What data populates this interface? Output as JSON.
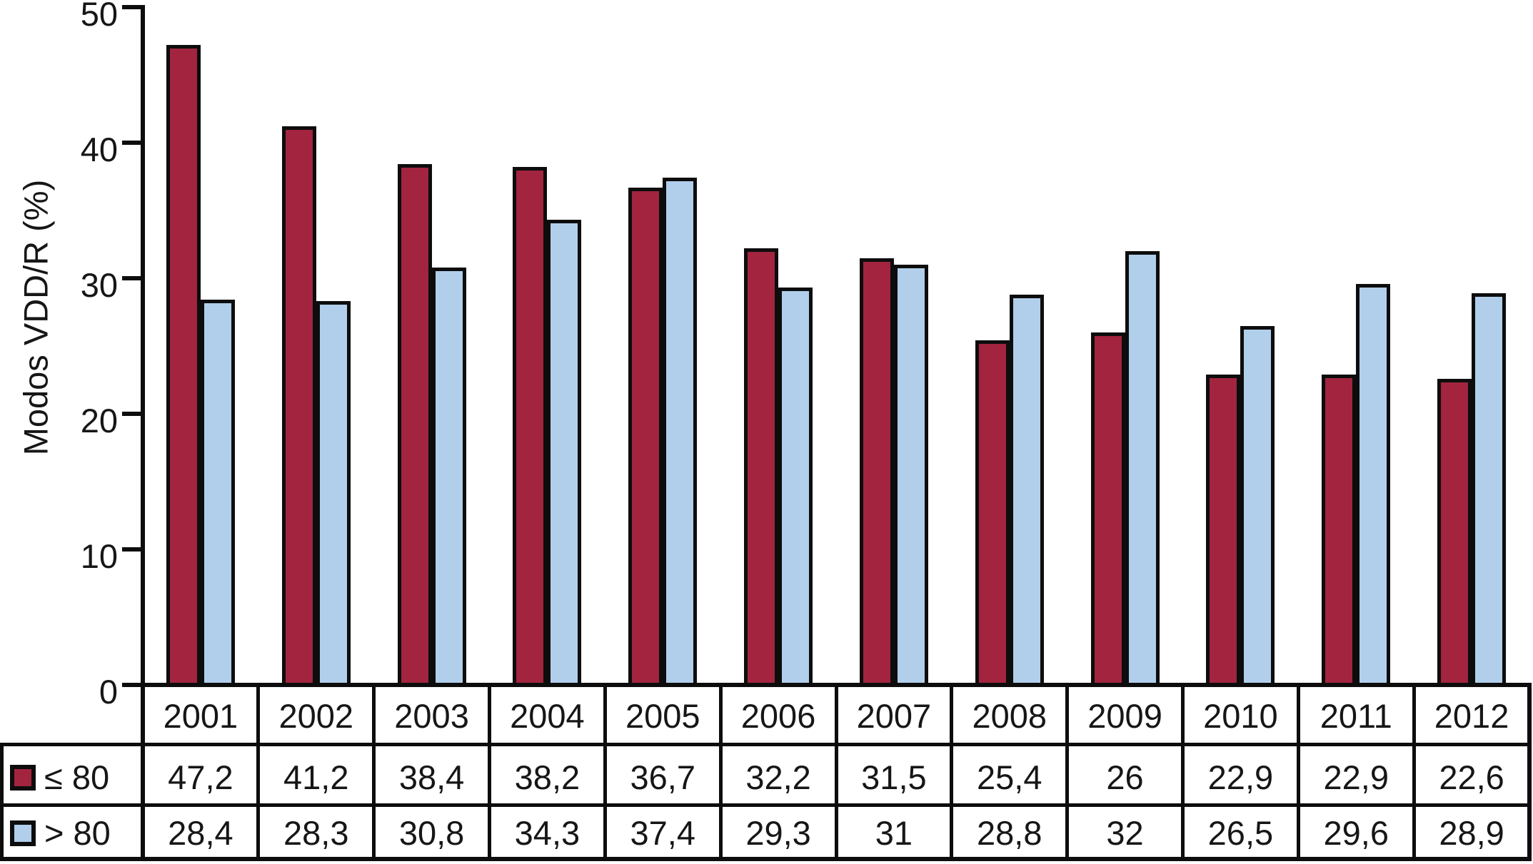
{
  "chart_data": {
    "type": "bar",
    "title": "",
    "ylabel": "Modos VDD/R (%)",
    "xlabel": "",
    "categories": [
      "2001",
      "2002",
      "2003",
      "2004",
      "2005",
      "2006",
      "2007",
      "2008",
      "2009",
      "2010",
      "2011",
      "2012"
    ],
    "series": [
      {
        "name": "≤ 80",
        "color": "#A2243E",
        "values": [
          47.2,
          41.2,
          38.4,
          38.2,
          36.7,
          32.2,
          31.5,
          25.4,
          26,
          22.9,
          22.9,
          22.6
        ],
        "labels": [
          "47,2",
          "41,2",
          "38,4",
          "38,2",
          "36,7",
          "32,2",
          "31,5",
          "25,4",
          "26",
          "22,9",
          "22,9",
          "22,6"
        ]
      },
      {
        "name": "> 80",
        "color": "#B1CFEB",
        "values": [
          28.4,
          28.3,
          30.8,
          34.3,
          37.4,
          29.3,
          31,
          28.8,
          32,
          26.5,
          29.6,
          28.9
        ],
        "labels": [
          "28,4",
          "28,3",
          "30,8",
          "34,3",
          "37,4",
          "29,3",
          "31",
          "28,8",
          "32",
          "26,5",
          "29,6",
          "28,9"
        ]
      }
    ],
    "ylim": [
      0,
      50
    ],
    "yticks": [
      0,
      10,
      20,
      30,
      40,
      50
    ],
    "grid": false,
    "legend_position": "table-rows-left",
    "decimal_separator": ","
  },
  "colors": {
    "bar_border": "#0d0d0d",
    "line": "#0d0d0d",
    "text": "#161616",
    "background": "#ffffff"
  }
}
